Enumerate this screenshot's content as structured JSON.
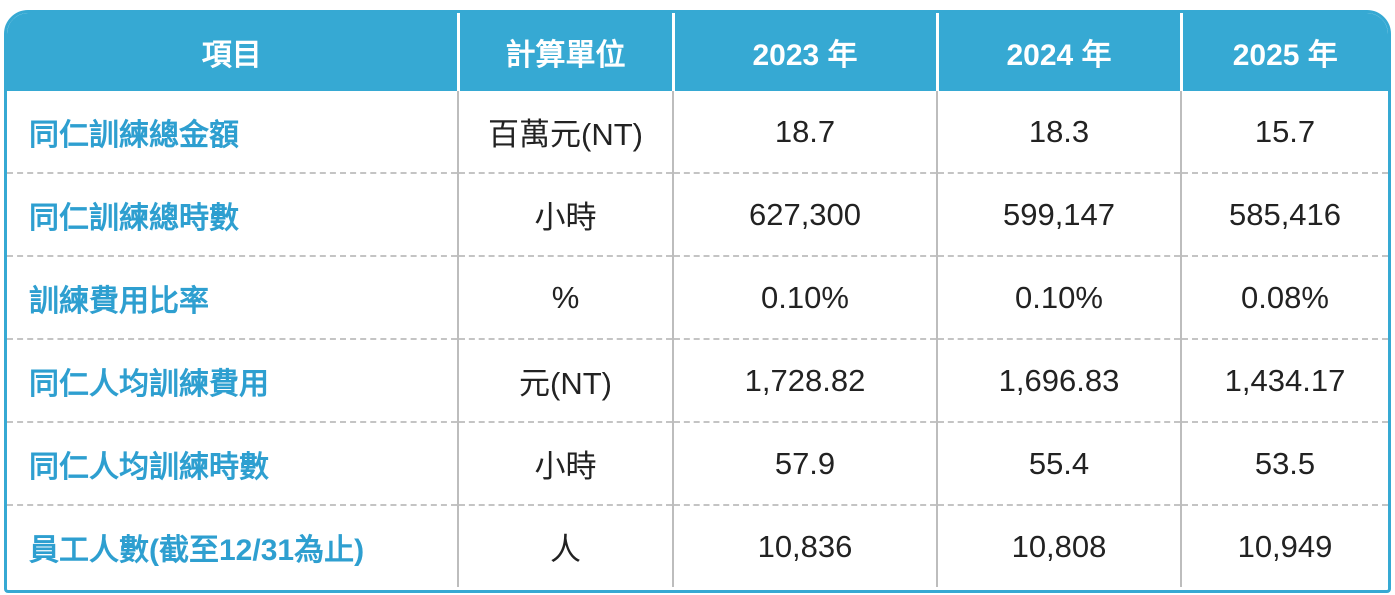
{
  "table": {
    "header": [
      "項目",
      "計算單位",
      "2023 年",
      "2024 年",
      "2025 年"
    ],
    "rows": [
      [
        "同仁訓練總金額",
        "百萬元(NT)",
        "18.7",
        "18.3",
        "15.7"
      ],
      [
        "同仁訓練總時數",
        "小時",
        "627,300",
        "599,147",
        "585,416"
      ],
      [
        "訓練費用比率",
        "%",
        "0.10%",
        "0.10%",
        "0.08%"
      ],
      [
        "同仁人均訓練費用",
        "元(NT)",
        "1,728.82",
        "1,696.83",
        "1,434.17"
      ],
      [
        "同仁人均訓練時數",
        "小時",
        "57.9",
        "55.4",
        "53.5"
      ],
      [
        "員工人數(截至12/31為止)",
        "人",
        "10,836",
        "10,808",
        "10,949"
      ]
    ]
  }
}
